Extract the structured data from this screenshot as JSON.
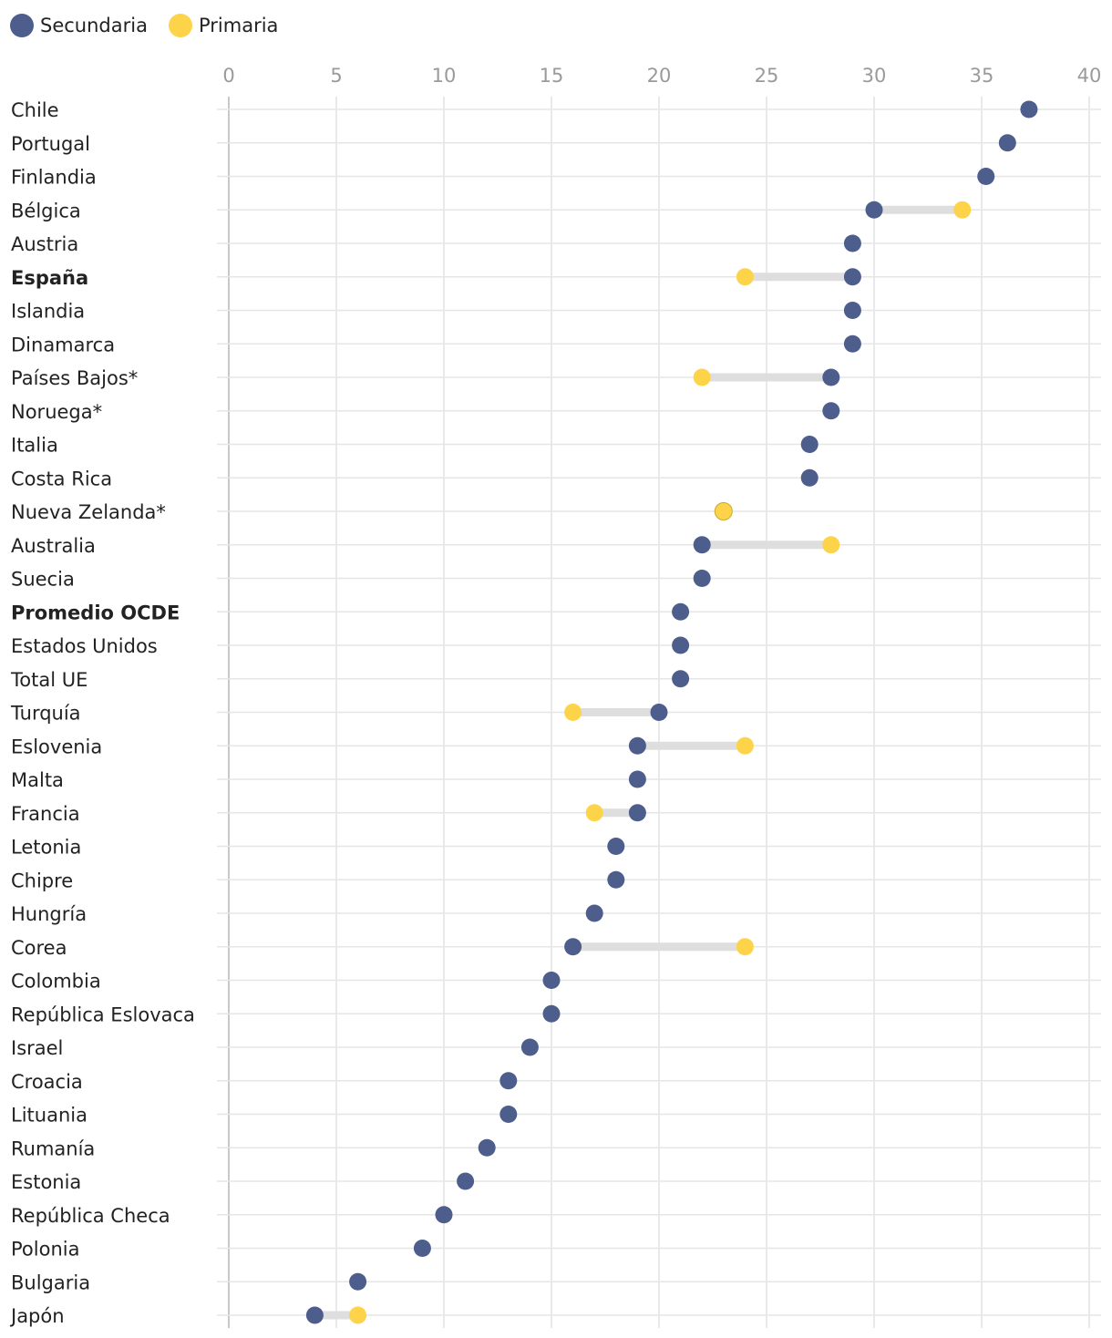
{
  "chart_data": {
    "type": "dot-range",
    "title": "",
    "xlabel": "",
    "ylabel": "",
    "xlim": [
      0,
      40
    ],
    "ticks": [
      0,
      5,
      10,
      15,
      20,
      25,
      30,
      35,
      40
    ],
    "grid": true,
    "legend_position": "top-left",
    "series": [
      {
        "name": "Secundaria",
        "color": "#4d5e8c"
      },
      {
        "name": "Primaria",
        "color": "#fdd449"
      }
    ],
    "categories": [
      {
        "label": "Chile",
        "secundaria": 37.2,
        "primaria": null,
        "bold": false
      },
      {
        "label": "Portugal",
        "secundaria": 36.2,
        "primaria": null,
        "bold": false
      },
      {
        "label": "Finlandia",
        "secundaria": 35.2,
        "primaria": null,
        "bold": false
      },
      {
        "label": "Bélgica",
        "secundaria": 30,
        "primaria": 34.1,
        "bold": false
      },
      {
        "label": "Austria",
        "secundaria": 29,
        "primaria": null,
        "bold": false
      },
      {
        "label": "España",
        "secundaria": 29,
        "primaria": 24,
        "bold": true
      },
      {
        "label": "Islandia",
        "secundaria": 29,
        "primaria": null,
        "bold": false
      },
      {
        "label": "Dinamarca",
        "secundaria": 29,
        "primaria": null,
        "bold": false
      },
      {
        "label": "Países Bajos*",
        "secundaria": 28,
        "primaria": 22,
        "bold": false
      },
      {
        "label": "Noruega*",
        "secundaria": 28,
        "primaria": null,
        "bold": false
      },
      {
        "label": "Italia",
        "secundaria": 27,
        "primaria": null,
        "bold": false
      },
      {
        "label": "Costa Rica",
        "secundaria": 27,
        "primaria": null,
        "bold": false
      },
      {
        "label": "Nueva Zelanda*",
        "secundaria": 23,
        "primaria": 23,
        "bold": false
      },
      {
        "label": "Australia",
        "secundaria": 22,
        "primaria": 28,
        "bold": false
      },
      {
        "label": "Suecia",
        "secundaria": 22,
        "primaria": null,
        "bold": false
      },
      {
        "label": "Promedio OCDE",
        "secundaria": 21,
        "primaria": null,
        "bold": true
      },
      {
        "label": "Estados Unidos",
        "secundaria": 21,
        "primaria": null,
        "bold": false
      },
      {
        "label": "Total UE",
        "secundaria": 21,
        "primaria": null,
        "bold": false
      },
      {
        "label": "Turquía",
        "secundaria": 20,
        "primaria": 16,
        "bold": false
      },
      {
        "label": "Eslovenia",
        "secundaria": 19,
        "primaria": 24,
        "bold": false
      },
      {
        "label": "Malta",
        "secundaria": 19,
        "primaria": null,
        "bold": false
      },
      {
        "label": "Francia",
        "secundaria": 19,
        "primaria": 17,
        "bold": false
      },
      {
        "label": "Letonia",
        "secundaria": 18,
        "primaria": null,
        "bold": false
      },
      {
        "label": "Chipre",
        "secundaria": 18,
        "primaria": null,
        "bold": false
      },
      {
        "label": "Hungría",
        "secundaria": 17,
        "primaria": null,
        "bold": false
      },
      {
        "label": "Corea",
        "secundaria": 16,
        "primaria": 24,
        "bold": false
      },
      {
        "label": "Colombia",
        "secundaria": 15,
        "primaria": null,
        "bold": false
      },
      {
        "label": "República Eslovaca",
        "secundaria": 15,
        "primaria": null,
        "bold": false
      },
      {
        "label": "Israel",
        "secundaria": 14,
        "primaria": null,
        "bold": false
      },
      {
        "label": "Croacia",
        "secundaria": 13,
        "primaria": null,
        "bold": false
      },
      {
        "label": "Lituania",
        "secundaria": 13,
        "primaria": null,
        "bold": false
      },
      {
        "label": "Rumanía",
        "secundaria": 12,
        "primaria": null,
        "bold": false
      },
      {
        "label": "Estonia",
        "secundaria": 11,
        "primaria": null,
        "bold": false
      },
      {
        "label": "República Checa",
        "secundaria": 10,
        "primaria": null,
        "bold": false
      },
      {
        "label": "Polonia",
        "secundaria": 9,
        "primaria": null,
        "bold": false
      },
      {
        "label": "Bulgaria",
        "secundaria": 6,
        "primaria": null,
        "bold": false
      },
      {
        "label": "Japón",
        "secundaria": 4,
        "primaria": 6,
        "bold": false
      }
    ]
  }
}
